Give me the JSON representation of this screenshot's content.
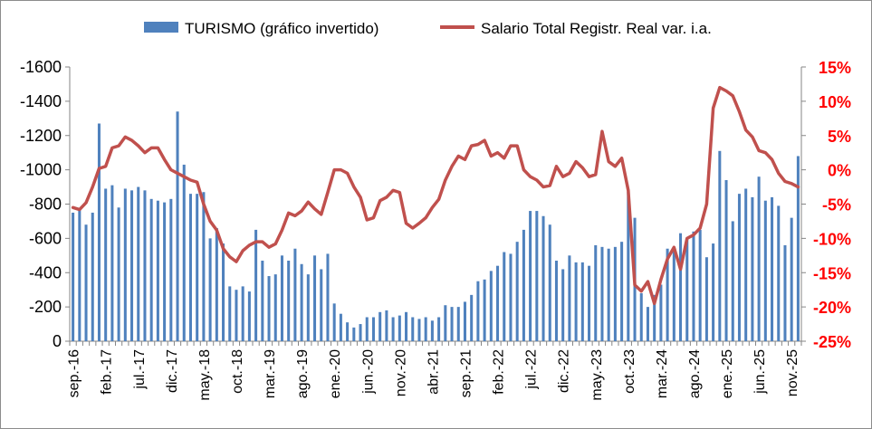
{
  "colors": {
    "bars": "#4f81bd",
    "line": "#c0504d",
    "right_axis_text": "#ff0000",
    "axis": "#868686"
  },
  "legend": {
    "bars_label": "TURISMO (gráfico invertido)",
    "line_label": "Salario Total Registr. Real var. i.a."
  },
  "chart_data": {
    "type": "bar+line",
    "legend_position": "top",
    "left_axis": {
      "ylim": [
        0,
        -1600
      ],
      "inverted": true,
      "ticks": [
        "-1600",
        "-1400",
        "-1200",
        "-1000",
        "-800",
        "-600",
        "-400",
        "-200",
        "0"
      ]
    },
    "right_axis": {
      "ylim": [
        -25,
        15
      ],
      "ticks": [
        "15%",
        "10%",
        "5%",
        "0%",
        "-5%",
        "-10%",
        "-15%",
        "-20%",
        "-25%"
      ]
    },
    "x_tick_labels": [
      "sep.-16",
      "feb.-17",
      "jul.-17",
      "dic.-17",
      "may.-18",
      "oct.-18",
      "mar.-19",
      "ago.-19",
      "ene.-20",
      "jun.-20",
      "nov.-20",
      "abr.-21",
      "sep.-21",
      "feb.-22",
      "jul.-22",
      "dic.-22",
      "may.-23",
      "oct.-23",
      "mar.-24",
      "ago.-24",
      "ene.-25",
      "jun.-25",
      "nov.-25"
    ],
    "series": [
      {
        "name": "TURISMO (gráfico invertido)",
        "type": "bar",
        "axis": "left",
        "values": [
          -750,
          -770,
          -680,
          -750,
          -1270,
          -890,
          -910,
          -780,
          -890,
          -880,
          -900,
          -880,
          -830,
          -820,
          -810,
          -830,
          -1340,
          -1030,
          -860,
          -860,
          -870,
          -600,
          -660,
          -570,
          -320,
          -300,
          -320,
          -290,
          -650,
          -470,
          -380,
          -390,
          -500,
          -470,
          -540,
          -450,
          -390,
          -500,
          -420,
          -510,
          -220,
          -160,
          -110,
          -80,
          -100,
          -140,
          -140,
          -170,
          -180,
          -140,
          -150,
          -170,
          -140,
          -130,
          -140,
          -120,
          -140,
          -210,
          -200,
          -200,
          -230,
          -270,
          -350,
          -360,
          -410,
          -440,
          -520,
          -510,
          -580,
          -650,
          -760,
          -760,
          -730,
          -680,
          -470,
          -420,
          -500,
          -460,
          -460,
          -440,
          -560,
          -550,
          -540,
          -550,
          -580,
          -870,
          -720,
          -280,
          -200,
          -270,
          -330,
          -540,
          -540,
          -630,
          -600,
          -640,
          -650,
          -490,
          -570,
          -1110,
          -940,
          -700,
          -860,
          -890,
          -840,
          -960,
          -820,
          -840,
          -790,
          -560,
          -720,
          -1080
        ]
      },
      {
        "name": "Salario Total Registr. Real var. i.a.",
        "type": "line",
        "axis": "right",
        "values": [
          -5.5,
          -5.8,
          -4.8,
          -2.5,
          0.2,
          0.5,
          3.2,
          3.5,
          4.8,
          4.3,
          3.5,
          2.5,
          3.2,
          3.2,
          1.5,
          0,
          -0.5,
          -1,
          -1.5,
          -1.8,
          -5,
          -7.5,
          -8.8,
          -11.5,
          -12.7,
          -13.4,
          -11.8,
          -11,
          -10.5,
          -10.5,
          -11.3,
          -10.8,
          -8.8,
          -6.3,
          -6.7,
          -6,
          -4.7,
          -5.7,
          -6.5,
          -3.3,
          0,
          0,
          -0.5,
          -2.5,
          -4,
          -7.3,
          -7,
          -4.5,
          -4,
          -3,
          -3.3,
          -7.8,
          -8.5,
          -7.8,
          -7,
          -5.5,
          -4.3,
          -1.5,
          0.5,
          2,
          1.5,
          3.5,
          3.7,
          4.3,
          2,
          2.5,
          1.7,
          3.5,
          3.5,
          0,
          -1,
          -1.5,
          -2.5,
          -2.3,
          0.5,
          -1,
          -0.5,
          1.2,
          0.3,
          -1,
          -0.7,
          5.6,
          1.2,
          0.5,
          1.7,
          -3,
          -16.8,
          -17.7,
          -16.3,
          -19.5,
          -16,
          -13,
          -11.3,
          -14.5,
          -10,
          -9.5,
          -8.5,
          -5,
          9,
          12,
          11.5,
          10.8,
          8.5,
          5.8,
          4.8,
          2.8,
          2.5,
          1.5,
          -0.5,
          -1.7,
          -2,
          -2.5
        ]
      }
    ]
  }
}
